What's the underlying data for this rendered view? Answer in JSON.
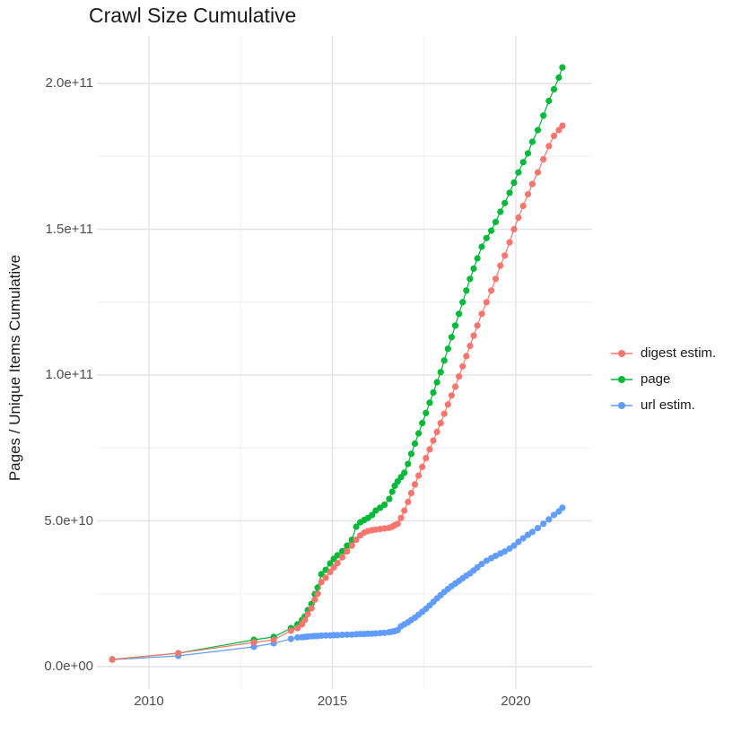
{
  "title": "Crawl Size Cumulative",
  "y_axis": {
    "title": "Pages / Unique Items Cumulative",
    "ticks": [
      {
        "label": "2.0e+11",
        "value": 200
      },
      {
        "label": "1.5e+11",
        "value": 150
      },
      {
        "label": "1.0e+11",
        "value": 100
      },
      {
        "label": "5.0e+10",
        "value": 50
      },
      {
        "label": "0.0e+00",
        "value": 0
      }
    ]
  },
  "x_axis": {
    "ticks": [
      {
        "label": "2010",
        "value": 2010
      },
      {
        "label": "2015",
        "value": 2015
      },
      {
        "label": "2020",
        "value": 2020
      }
    ]
  },
  "legend": {
    "items": [
      {
        "label": "digest estim.",
        "color": "#F8766D"
      },
      {
        "label": "page",
        "color": "#00BA38"
      },
      {
        "label": "url estim.",
        "color": "#619CFF"
      }
    ]
  },
  "chart_data": {
    "type": "line",
    "title": "Crawl Size Cumulative",
    "xlabel": "",
    "ylabel": "Pages / Unique Items Cumulative",
    "value_unit": "billions (1e9) of pages / unique items, cumulative",
    "x_range": [
      2008.6,
      2022.1
    ],
    "y_range_billions": [
      -8,
      216
    ],
    "legend_position": "right",
    "grid": {
      "major_color": "#e3e3e3",
      "minor_color": "#efefef",
      "minor_x": [
        2012.5,
        2017.5
      ],
      "minor_y": [
        25,
        75,
        125,
        175
      ]
    },
    "point_color_digest": "#F8766D",
    "point_color_page": "#00BA38",
    "point_color_url": "#619CFF",
    "series": [
      {
        "name": "url estim.",
        "color": "#619CFF",
        "points": [
          [
            2009.0,
            2.4
          ],
          [
            2010.8,
            3.7
          ],
          [
            2012.86,
            6.8
          ],
          [
            2013.4,
            8.0
          ],
          [
            2013.87,
            9.5
          ],
          [
            2014.05,
            10.0
          ],
          [
            2014.17,
            10.1
          ],
          [
            2014.25,
            10.2
          ],
          [
            2014.33,
            10.3
          ],
          [
            2014.43,
            10.4
          ],
          [
            2014.52,
            10.5
          ],
          [
            2014.6,
            10.5
          ],
          [
            2014.7,
            10.6
          ],
          [
            2014.82,
            10.7
          ],
          [
            2014.94,
            10.7
          ],
          [
            2015.04,
            10.8
          ],
          [
            2015.14,
            10.8
          ],
          [
            2015.27,
            10.9
          ],
          [
            2015.4,
            11.0
          ],
          [
            2015.53,
            11.0
          ],
          [
            2015.65,
            11.1
          ],
          [
            2015.76,
            11.2
          ],
          [
            2015.87,
            11.2
          ],
          [
            2015.97,
            11.3
          ],
          [
            2016.08,
            11.3
          ],
          [
            2016.18,
            11.4
          ],
          [
            2016.3,
            11.5
          ],
          [
            2016.42,
            11.6
          ],
          [
            2016.55,
            11.8
          ],
          [
            2016.63,
            12.0
          ],
          [
            2016.7,
            12.2
          ],
          [
            2016.78,
            12.5
          ],
          [
            2016.87,
            13.8
          ],
          [
            2016.96,
            14.5
          ],
          [
            2017.06,
            15.2
          ],
          [
            2017.15,
            16.0
          ],
          [
            2017.25,
            16.8
          ],
          [
            2017.35,
            17.8
          ],
          [
            2017.45,
            18.8
          ],
          [
            2017.55,
            19.8
          ],
          [
            2017.65,
            21.0
          ],
          [
            2017.75,
            22.2
          ],
          [
            2017.85,
            23.4
          ],
          [
            2017.95,
            24.5
          ],
          [
            2018.05,
            25.6
          ],
          [
            2018.15,
            26.6
          ],
          [
            2018.25,
            27.6
          ],
          [
            2018.35,
            28.5
          ],
          [
            2018.45,
            29.4
          ],
          [
            2018.55,
            30.3
          ],
          [
            2018.65,
            31.2
          ],
          [
            2018.75,
            32.0
          ],
          [
            2018.85,
            33.0
          ],
          [
            2018.95,
            34.0
          ],
          [
            2019.07,
            35.2
          ],
          [
            2019.2,
            36.3
          ],
          [
            2019.33,
            37.2
          ],
          [
            2019.45,
            38.0
          ],
          [
            2019.58,
            38.8
          ],
          [
            2019.7,
            39.5
          ],
          [
            2019.83,
            40.5
          ],
          [
            2019.95,
            41.5
          ],
          [
            2020.07,
            42.8
          ],
          [
            2020.2,
            44.0
          ],
          [
            2020.33,
            45.2
          ],
          [
            2020.45,
            46.2
          ],
          [
            2020.6,
            47.5
          ],
          [
            2020.75,
            49.0
          ],
          [
            2020.9,
            50.5
          ],
          [
            2021.04,
            52.0
          ],
          [
            2021.17,
            53.2
          ],
          [
            2021.27,
            54.5
          ]
        ]
      },
      {
        "name": "page",
        "color": "#00BA38",
        "points": [
          [
            2009.0,
            2.5
          ],
          [
            2010.8,
            4.6
          ],
          [
            2012.86,
            9.2
          ],
          [
            2013.4,
            10.2
          ],
          [
            2013.87,
            13.2
          ],
          [
            2014.05,
            14.5
          ],
          [
            2014.17,
            16.0
          ],
          [
            2014.25,
            17.2
          ],
          [
            2014.33,
            19.4
          ],
          [
            2014.43,
            21.5
          ],
          [
            2014.52,
            24.9
          ],
          [
            2014.6,
            27.1
          ],
          [
            2014.7,
            31.7
          ],
          [
            2014.82,
            33.2
          ],
          [
            2014.94,
            35.4
          ],
          [
            2015.04,
            37.0
          ],
          [
            2015.14,
            38.2
          ],
          [
            2015.27,
            39.6
          ],
          [
            2015.4,
            41.5
          ],
          [
            2015.53,
            43.5
          ],
          [
            2015.65,
            48.0
          ],
          [
            2015.76,
            49.5
          ],
          [
            2015.87,
            50.3
          ],
          [
            2015.97,
            51.0
          ],
          [
            2016.08,
            52.0
          ],
          [
            2016.18,
            53.5
          ],
          [
            2016.3,
            54.5
          ],
          [
            2016.42,
            55.5
          ],
          [
            2016.55,
            57.5
          ],
          [
            2016.63,
            60.0
          ],
          [
            2016.7,
            62.0
          ],
          [
            2016.78,
            63.5
          ],
          [
            2016.87,
            65.0
          ],
          [
            2016.96,
            66.5
          ],
          [
            2017.06,
            69.5
          ],
          [
            2017.15,
            73.0
          ],
          [
            2017.25,
            76.5
          ],
          [
            2017.35,
            80.0
          ],
          [
            2017.45,
            83.5
          ],
          [
            2017.55,
            87.0
          ],
          [
            2017.65,
            90.5
          ],
          [
            2017.75,
            94.0
          ],
          [
            2017.85,
            97.5
          ],
          [
            2017.95,
            101.0
          ],
          [
            2018.05,
            105.0
          ],
          [
            2018.15,
            109.0
          ],
          [
            2018.25,
            113.0
          ],
          [
            2018.35,
            117.0
          ],
          [
            2018.45,
            121.0
          ],
          [
            2018.55,
            125.0
          ],
          [
            2018.65,
            129.0
          ],
          [
            2018.75,
            133.0
          ],
          [
            2018.85,
            136.5
          ],
          [
            2018.95,
            140.0
          ],
          [
            2019.07,
            144.0
          ],
          [
            2019.2,
            147.0
          ],
          [
            2019.33,
            149.5
          ],
          [
            2019.45,
            152.5
          ],
          [
            2019.58,
            156.0
          ],
          [
            2019.7,
            159.0
          ],
          [
            2019.83,
            162.5
          ],
          [
            2019.95,
            166.0
          ],
          [
            2020.07,
            169.5
          ],
          [
            2020.2,
            173.0
          ],
          [
            2020.33,
            176.0
          ],
          [
            2020.45,
            180.0
          ],
          [
            2020.6,
            184.0
          ],
          [
            2020.75,
            189.0
          ],
          [
            2020.9,
            194.0
          ],
          [
            2021.04,
            198.0
          ],
          [
            2021.17,
            202.0
          ],
          [
            2021.27,
            205.5
          ]
        ]
      },
      {
        "name": "digest estim.",
        "color": "#F8766D",
        "points": [
          [
            2009.0,
            2.4
          ],
          [
            2010.8,
            4.6
          ],
          [
            2012.86,
            8.3
          ],
          [
            2013.4,
            9.2
          ],
          [
            2013.87,
            12.3
          ],
          [
            2014.05,
            13.2
          ],
          [
            2014.17,
            14.5
          ],
          [
            2014.25,
            16.0
          ],
          [
            2014.33,
            18.0
          ],
          [
            2014.43,
            20.0
          ],
          [
            2014.52,
            23.0
          ],
          [
            2014.6,
            25.0
          ],
          [
            2014.7,
            29.0
          ],
          [
            2014.82,
            30.5
          ],
          [
            2014.94,
            32.5
          ],
          [
            2015.04,
            34.0
          ],
          [
            2015.14,
            35.5
          ],
          [
            2015.27,
            37.5
          ],
          [
            2015.4,
            39.5
          ],
          [
            2015.53,
            41.5
          ],
          [
            2015.65,
            43.5
          ],
          [
            2015.76,
            45.0
          ],
          [
            2015.87,
            46.0
          ],
          [
            2015.97,
            46.5
          ],
          [
            2016.08,
            46.8
          ],
          [
            2016.18,
            47.0
          ],
          [
            2016.3,
            47.2
          ],
          [
            2016.42,
            47.4
          ],
          [
            2016.55,
            47.6
          ],
          [
            2016.63,
            48.0
          ],
          [
            2016.7,
            48.5
          ],
          [
            2016.78,
            49.0
          ],
          [
            2016.87,
            51.0
          ],
          [
            2016.96,
            53.5
          ],
          [
            2017.06,
            56.5
          ],
          [
            2017.15,
            59.5
          ],
          [
            2017.25,
            62.5
          ],
          [
            2017.35,
            65.5
          ],
          [
            2017.45,
            68.5
          ],
          [
            2017.55,
            71.5
          ],
          [
            2017.65,
            74.5
          ],
          [
            2017.75,
            77.5
          ],
          [
            2017.85,
            80.5
          ],
          [
            2017.95,
            83.5
          ],
          [
            2018.05,
            86.7
          ],
          [
            2018.15,
            89.9
          ],
          [
            2018.25,
            93.0
          ],
          [
            2018.35,
            96.0
          ],
          [
            2018.45,
            99.5
          ],
          [
            2018.55,
            103.0
          ],
          [
            2018.65,
            106.5
          ],
          [
            2018.75,
            110.0
          ],
          [
            2018.85,
            113.5
          ],
          [
            2018.95,
            117.0
          ],
          [
            2019.07,
            121.0
          ],
          [
            2019.2,
            125.0
          ],
          [
            2019.33,
            129.0
          ],
          [
            2019.45,
            133.0
          ],
          [
            2019.58,
            137.5
          ],
          [
            2019.7,
            141.0
          ],
          [
            2019.83,
            145.5
          ],
          [
            2019.95,
            150.0
          ],
          [
            2020.07,
            154.0
          ],
          [
            2020.2,
            158.0
          ],
          [
            2020.33,
            162.0
          ],
          [
            2020.45,
            165.5
          ],
          [
            2020.6,
            169.5
          ],
          [
            2020.75,
            174.0
          ],
          [
            2020.9,
            178.5
          ],
          [
            2021.04,
            182.0
          ],
          [
            2021.17,
            184.0
          ],
          [
            2021.27,
            185.5
          ]
        ]
      }
    ]
  }
}
